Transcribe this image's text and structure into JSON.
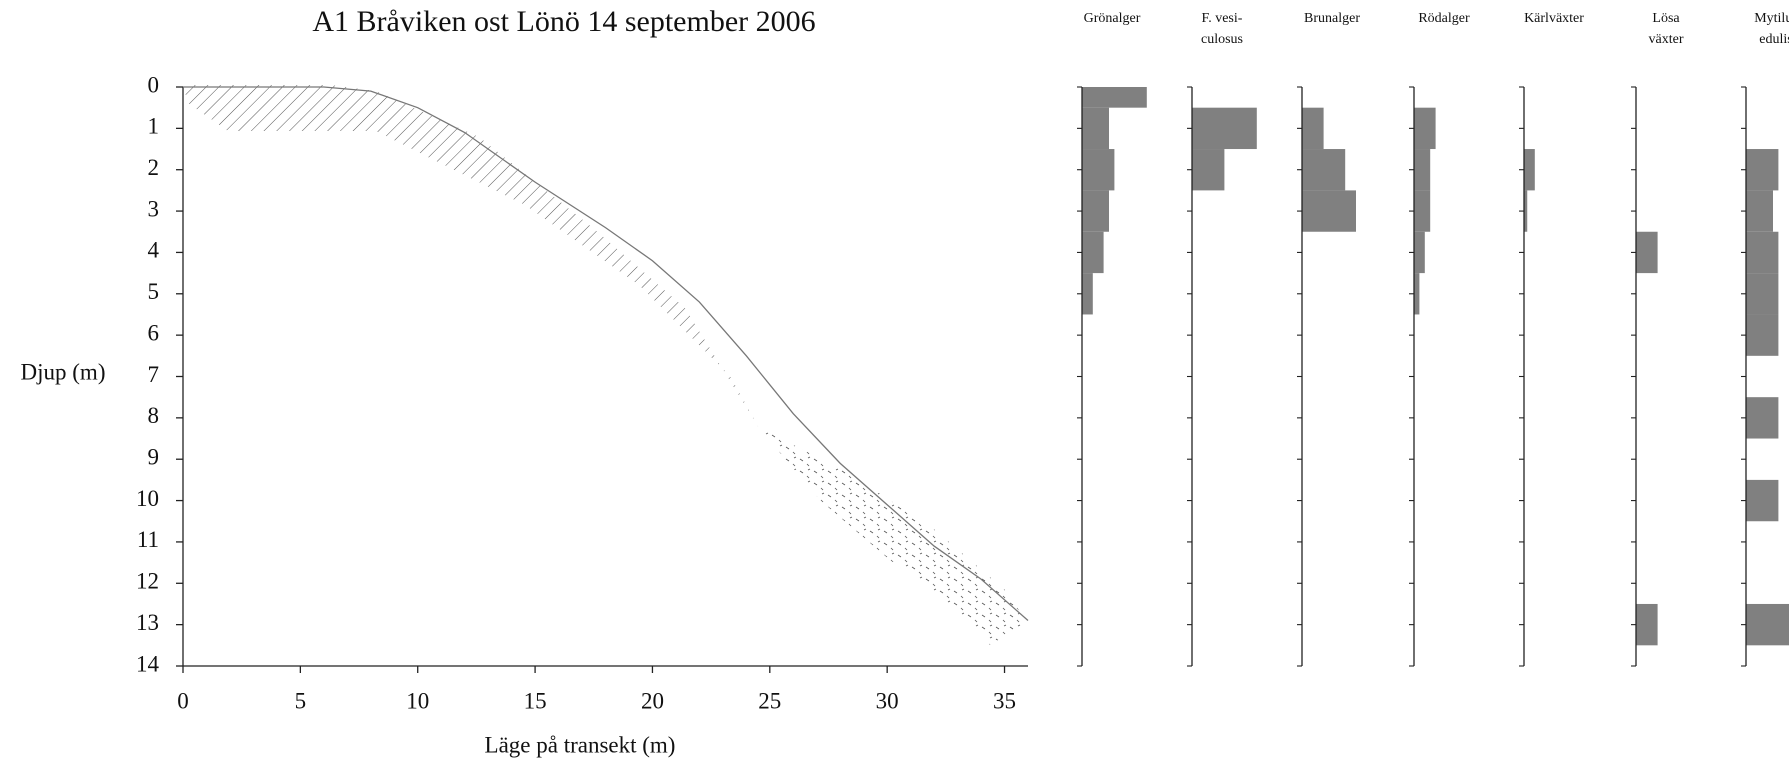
{
  "chart_data": [
    {
      "type": "line",
      "title": "A1 Bråviken ost Lönö 14 september 2006",
      "x_label": "Läge på transekt (m)",
      "y_label": "Djup (m)",
      "x": [
        0,
        6,
        8,
        10,
        12,
        15,
        18,
        20,
        22,
        24,
        26,
        28,
        30,
        32,
        34,
        36
      ],
      "series": [
        {
          "color": "#777777",
          "values": [
            0,
            0,
            0.1,
            0.5,
            1.1,
            2.3,
            3.4,
            4.2,
            5.2,
            6.5,
            7.9,
            9.1,
            10.1,
            11.1,
            11.9,
            12.9
          ]
        }
      ],
      "xlim": [
        0,
        36
      ],
      "xticks": [
        0,
        5,
        10,
        15,
        20,
        25,
        30,
        35
      ],
      "ylim": [
        0,
        14
      ],
      "yticks": [
        0,
        1,
        2,
        3,
        4,
        5,
        6,
        7,
        8,
        9,
        10,
        11,
        12,
        13,
        14
      ],
      "y_inverted": true
    },
    {
      "type": "bar",
      "orientation": "horizontal",
      "depths": [
        0,
        1,
        2,
        3,
        4,
        5,
        6,
        7,
        8,
        9,
        10,
        11,
        12,
        13
      ],
      "xlim": [
        0,
        100
      ],
      "ylim": [
        0,
        14
      ],
      "yticks": [
        0,
        1,
        2,
        3,
        4,
        5,
        6,
        7,
        8,
        9,
        10,
        11,
        12,
        13,
        14
      ],
      "color": "#808080",
      "series": [
        {
          "name_lines": [
            "Grönalger"
          ],
          "values": [
            60,
            25,
            30,
            25,
            20,
            10,
            0,
            0,
            0,
            0,
            0,
            0,
            0,
            0
          ]
        },
        {
          "name_lines": [
            "F. vesi-",
            "culosus"
          ],
          "values": [
            0,
            60,
            30,
            0,
            0,
            0,
            0,
            0,
            0,
            0,
            0,
            0,
            0,
            0
          ]
        },
        {
          "name_lines": [
            "Brunalger"
          ],
          "values": [
            0,
            20,
            40,
            50,
            0,
            0,
            0,
            0,
            0,
            0,
            0,
            0,
            0,
            0
          ]
        },
        {
          "name_lines": [
            "Rödalger"
          ],
          "values": [
            0,
            20,
            15,
            15,
            10,
            5,
            0,
            0,
            0,
            0,
            0,
            0,
            0,
            0
          ]
        },
        {
          "name_lines": [
            "Kärlväxter"
          ],
          "values": [
            0,
            0,
            10,
            3,
            0,
            0,
            0,
            0,
            0,
            0,
            0,
            0,
            0,
            0
          ]
        },
        {
          "name_lines": [
            "Lösa",
            "växter"
          ],
          "values": [
            0,
            0,
            0,
            0,
            20,
            0,
            0,
            0,
            0,
            0,
            0,
            0,
            0,
            20
          ]
        },
        {
          "name_lines": [
            "Mytilus",
            "edulis"
          ],
          "values": [
            0,
            0,
            30,
            25,
            30,
            30,
            30,
            0,
            30,
            0,
            30,
            0,
            0,
            40
          ]
        }
      ]
    }
  ]
}
